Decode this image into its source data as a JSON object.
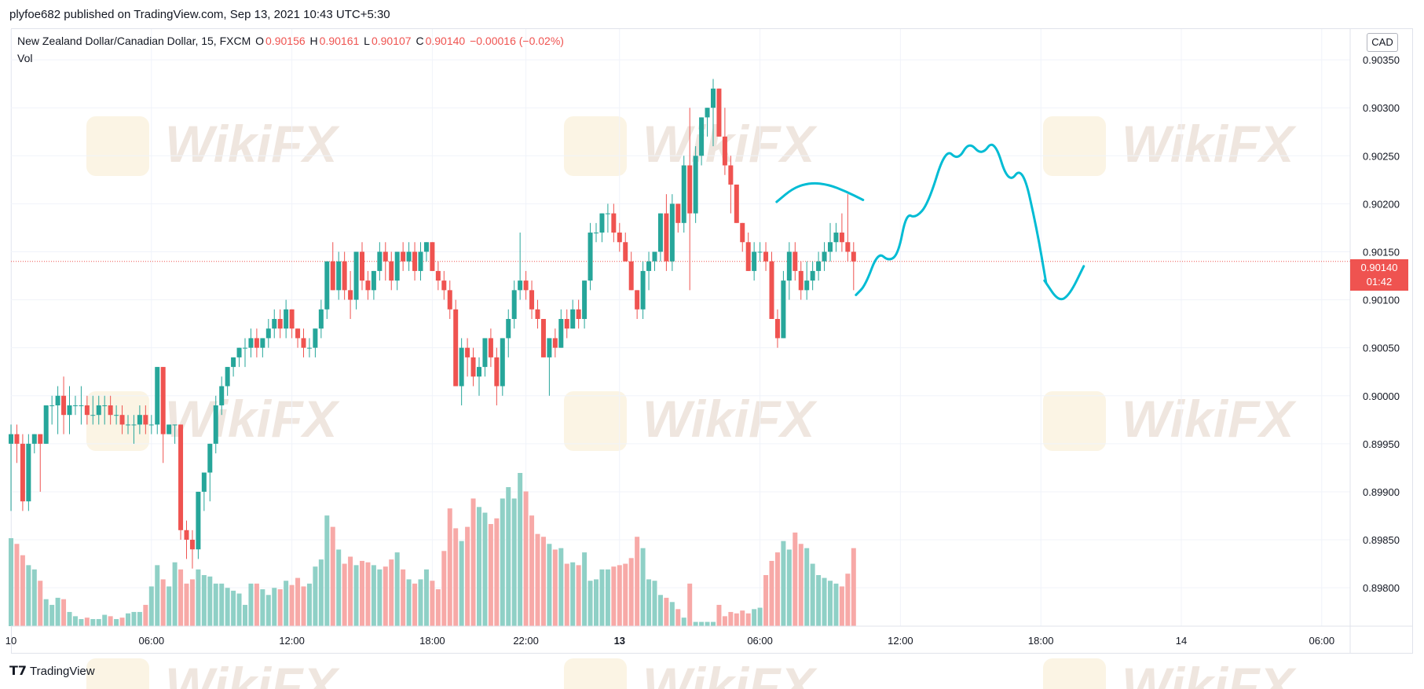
{
  "header": {
    "published": "plyfoe682 published on TradingView.com, Sep 13, 2021 10:43 UTC+5:30"
  },
  "legend": {
    "symbol": "New Zealand Dollar/Canadian Dollar, 15, FXCM",
    "o_label": "O",
    "o_value": "0.90156",
    "h_label": "H",
    "h_value": "0.90161",
    "l_label": "L",
    "l_value": "0.90107",
    "c_label": "C",
    "c_value": "0.90140",
    "change": "−0.00016 (−0.02%)",
    "volume_label": "Vol"
  },
  "currency": "CAD",
  "price_tag": {
    "price": "0.90140",
    "countdown": "01:42"
  },
  "watermark_text": "WikiFX",
  "footer": {
    "brand": "TradingView",
    "logo_icon": "tradingview-logo-icon"
  },
  "colors": {
    "up": "#26a69a",
    "down": "#ef5350",
    "up_volume": "#8fd0c6",
    "down_volume": "#f7a9a7",
    "drawing": "#00bcd4"
  },
  "chart_data": {
    "type": "candlestick",
    "interval_minutes": 15,
    "y_axis_ticks": [
      "0.90350",
      "0.90300",
      "0.90250",
      "0.90200",
      "0.90150",
      "0.90100",
      "0.90050",
      "0.90000",
      "0.89950",
      "0.89900",
      "0.89850",
      "0.89800"
    ],
    "ylim": [
      0.8976,
      0.90382
    ],
    "x_axis_ticks": [
      {
        "label": "10",
        "bold": false,
        "hours": 0
      },
      {
        "label": "06:00",
        "bold": false,
        "hours": 6
      },
      {
        "label": "12:00",
        "bold": false,
        "hours": 12
      },
      {
        "label": "18:00",
        "bold": false,
        "hours": 18
      },
      {
        "label": "22:00",
        "bold": false,
        "hours": 22
      },
      {
        "label": "13",
        "bold": true,
        "hours": 26
      },
      {
        "label": "06:00",
        "bold": false,
        "hours": 32
      },
      {
        "label": "12:00",
        "bold": false,
        "hours": 38
      },
      {
        "label": "18:00",
        "bold": false,
        "hours": 44
      },
      {
        "label": "14",
        "bold": false,
        "hours": 50
      },
      {
        "label": "06:00",
        "bold": false,
        "hours": 56
      }
    ],
    "last_price": 0.9014,
    "candles": [
      [
        0.8995,
        0.8997,
        0.8988,
        0.8996,
        62
      ],
      [
        0.8996,
        0.8997,
        0.8993,
        0.8995,
        58
      ],
      [
        0.8995,
        0.8996,
        0.8988,
        0.8989,
        50
      ],
      [
        0.8989,
        0.8996,
        0.8988,
        0.8995,
        43
      ],
      [
        0.8995,
        0.8996,
        0.8994,
        0.8996,
        40
      ],
      [
        0.8996,
        0.8996,
        0.899,
        0.8995,
        32
      ],
      [
        0.8995,
        0.8999,
        0.8995,
        0.8999,
        19
      ],
      [
        0.8999,
        0.9,
        0.8997,
        0.8999,
        15
      ],
      [
        0.8999,
        0.9001,
        0.8996,
        0.9,
        20
      ],
      [
        0.9,
        0.9002,
        0.8996,
        0.8998,
        19
      ],
      [
        0.8998,
        0.9001,
        0.8996,
        0.8999,
        10
      ],
      [
        0.8999,
        0.9,
        0.8998,
        0.8999,
        7
      ],
      [
        0.8999,
        0.9001,
        0.8997,
        0.8999,
        5
      ],
      [
        0.8999,
        0.9,
        0.8997,
        0.8998,
        6
      ],
      [
        0.8998,
        0.9,
        0.8997,
        0.8998,
        5
      ],
      [
        0.8998,
        0.9,
        0.8997,
        0.8999,
        5
      ],
      [
        0.8999,
        0.9,
        0.8997,
        0.8999,
        8
      ],
      [
        0.8999,
        0.9,
        0.8997,
        0.8998,
        7
      ],
      [
        0.8998,
        0.8999,
        0.8997,
        0.8998,
        5
      ],
      [
        0.8998,
        0.8999,
        0.8996,
        0.8997,
        6
      ],
      [
        0.8997,
        0.8998,
        0.8996,
        0.8997,
        9
      ],
      [
        0.8997,
        0.8998,
        0.8995,
        0.8997,
        10
      ],
      [
        0.8997,
        0.8999,
        0.8996,
        0.8998,
        10
      ],
      [
        0.8998,
        0.8999,
        0.8996,
        0.8997,
        15
      ],
      [
        0.8997,
        0.8998,
        0.8996,
        0.8997,
        28
      ],
      [
        0.8997,
        0.9003,
        0.8996,
        0.9003,
        43
      ],
      [
        0.9003,
        0.9003,
        0.8993,
        0.8996,
        33
      ],
      [
        0.8996,
        0.8997,
        0.8996,
        0.8997,
        28
      ],
      [
        0.8997,
        0.8997,
        0.8995,
        0.8997,
        45
      ],
      [
        0.8997,
        0.8997,
        0.8985,
        0.8986,
        40
      ],
      [
        0.8986,
        0.8987,
        0.8983,
        0.8985,
        30
      ],
      [
        0.8985,
        0.8986,
        0.8982,
        0.8984,
        33
      ],
      [
        0.8984,
        0.899,
        0.8983,
        0.899,
        40
      ],
      [
        0.899,
        0.8992,
        0.8988,
        0.8992,
        36
      ],
      [
        0.8992,
        0.8995,
        0.8989,
        0.8995,
        35
      ],
      [
        0.8995,
        0.9,
        0.8994,
        0.8999,
        30
      ],
      [
        0.8999,
        0.9002,
        0.8998,
        0.9001,
        30
      ],
      [
        0.9001,
        0.9003,
        0.9,
        0.9003,
        27
      ],
      [
        0.9003,
        0.9004,
        0.9002,
        0.9004,
        25
      ],
      [
        0.9004,
        0.9005,
        0.9003,
        0.9005,
        23
      ],
      [
        0.9005,
        0.9006,
        0.9003,
        0.9005,
        15
      ],
      [
        0.9005,
        0.9007,
        0.9004,
        0.9006,
        30
      ],
      [
        0.9006,
        0.9007,
        0.9004,
        0.9005,
        30
      ],
      [
        0.9005,
        0.9006,
        0.9004,
        0.9006,
        26
      ],
      [
        0.9006,
        0.9008,
        0.9005,
        0.9007,
        22
      ],
      [
        0.9007,
        0.9009,
        0.9006,
        0.9008,
        27
      ],
      [
        0.9008,
        0.9009,
        0.9006,
        0.9007,
        26
      ],
      [
        0.9007,
        0.901,
        0.9006,
        0.9009,
        32
      ],
      [
        0.9009,
        0.9009,
        0.9006,
        0.9007,
        29
      ],
      [
        0.9007,
        0.9007,
        0.9005,
        0.9006,
        34
      ],
      [
        0.9006,
        0.9007,
        0.9004,
        0.9005,
        28
      ],
      [
        0.9005,
        0.9006,
        0.9004,
        0.9005,
        30
      ],
      [
        0.9005,
        0.9007,
        0.9004,
        0.9007,
        42
      ],
      [
        0.9007,
        0.901,
        0.9006,
        0.9009,
        47
      ],
      [
        0.9009,
        0.9014,
        0.9008,
        0.9014,
        78
      ],
      [
        0.9014,
        0.9016,
        0.9011,
        0.9011,
        70
      ],
      [
        0.9011,
        0.9015,
        0.901,
        0.9014,
        54
      ],
      [
        0.9014,
        0.9015,
        0.901,
        0.9011,
        44
      ],
      [
        0.9011,
        0.9013,
        0.9008,
        0.901,
        49
      ],
      [
        0.901,
        0.9015,
        0.9009,
        0.9015,
        43
      ],
      [
        0.9015,
        0.9016,
        0.9011,
        0.9012,
        46
      ],
      [
        0.9012,
        0.9013,
        0.901,
        0.9011,
        45
      ],
      [
        0.9011,
        0.9013,
        0.901,
        0.9013,
        43
      ],
      [
        0.9013,
        0.9016,
        0.9012,
        0.9015,
        40
      ],
      [
        0.9015,
        0.9016,
        0.9012,
        0.9014,
        42
      ],
      [
        0.9014,
        0.9015,
        0.9011,
        0.9012,
        47
      ],
      [
        0.9012,
        0.9015,
        0.9011,
        0.9015,
        52
      ],
      [
        0.9015,
        0.9016,
        0.9013,
        0.9014,
        40
      ],
      [
        0.9014,
        0.9016,
        0.9013,
        0.9015,
        33
      ],
      [
        0.9015,
        0.9016,
        0.9012,
        0.9013,
        30
      ],
      [
        0.9013,
        0.9016,
        0.9012,
        0.9015,
        33
      ],
      [
        0.9015,
        0.9016,
        0.9014,
        0.9016,
        40
      ],
      [
        0.9016,
        0.9016,
        0.9013,
        0.9013,
        32
      ],
      [
        0.9013,
        0.9014,
        0.9011,
        0.9012,
        26
      ],
      [
        0.9012,
        0.9013,
        0.901,
        0.9011,
        53
      ],
      [
        0.9011,
        0.9012,
        0.9008,
        0.9009,
        83
      ],
      [
        0.9009,
        0.901,
        0.9001,
        0.9001,
        69
      ],
      [
        0.9001,
        0.9006,
        0.8999,
        0.9005,
        60
      ],
      [
        0.9005,
        0.9006,
        0.9002,
        0.9004,
        70
      ],
      [
        0.9004,
        0.9005,
        0.9001,
        0.9002,
        90
      ],
      [
        0.9002,
        0.9004,
        0.9,
        0.9003,
        84
      ],
      [
        0.9003,
        0.9006,
        0.9002,
        0.9006,
        80
      ],
      [
        0.9006,
        0.9007,
        0.9003,
        0.9004,
        72
      ],
      [
        0.9004,
        0.9005,
        0.8999,
        0.9001,
        76
      ],
      [
        0.9001,
        0.9006,
        0.9,
        0.9006,
        90
      ],
      [
        0.9006,
        0.9009,
        0.9004,
        0.9008,
        98
      ],
      [
        0.9008,
        0.9012,
        0.9007,
        0.9011,
        90
      ],
      [
        0.9011,
        0.9017,
        0.901,
        0.9012,
        108
      ],
      [
        0.9012,
        0.9013,
        0.901,
        0.9011,
        95
      ],
      [
        0.9011,
        0.9012,
        0.9008,
        0.9009,
        78
      ],
      [
        0.9009,
        0.901,
        0.9007,
        0.9008,
        65
      ],
      [
        0.9008,
        0.9008,
        0.9004,
        0.9004,
        63
      ],
      [
        0.9004,
        0.9006,
        0.9,
        0.9006,
        58
      ],
      [
        0.9006,
        0.9007,
        0.9004,
        0.9005,
        54
      ],
      [
        0.9005,
        0.9009,
        0.9005,
        0.9008,
        55
      ],
      [
        0.9008,
        0.9009,
        0.9006,
        0.9007,
        44
      ],
      [
        0.9007,
        0.901,
        0.9007,
        0.9009,
        45
      ],
      [
        0.9009,
        0.901,
        0.9007,
        0.9008,
        43
      ],
      [
        0.9008,
        0.9012,
        0.9007,
        0.9012,
        52
      ],
      [
        0.9012,
        0.9018,
        0.9011,
        0.9017,
        32
      ],
      [
        0.9017,
        0.9018,
        0.9016,
        0.9017,
        33
      ],
      [
        0.9017,
        0.9019,
        0.9016,
        0.9019,
        40
      ],
      [
        0.9019,
        0.902,
        0.9017,
        0.9019,
        40
      ],
      [
        0.9019,
        0.902,
        0.9016,
        0.9017,
        42
      ],
      [
        0.9017,
        0.9018,
        0.9015,
        0.9016,
        43
      ],
      [
        0.9016,
        0.9017,
        0.9014,
        0.9014,
        44
      ],
      [
        0.9014,
        0.9015,
        0.9011,
        0.9011,
        48
      ],
      [
        0.9011,
        0.9011,
        0.9008,
        0.9009,
        63
      ],
      [
        0.9009,
        0.9014,
        0.9008,
        0.9013,
        55
      ],
      [
        0.9013,
        0.9015,
        0.9011,
        0.9014,
        33
      ],
      [
        0.9014,
        0.9015,
        0.9013,
        0.9015,
        32
      ],
      [
        0.9015,
        0.9019,
        0.9014,
        0.9019,
        22
      ],
      [
        0.9019,
        0.9021,
        0.9013,
        0.9014,
        20
      ],
      [
        0.9014,
        0.9021,
        0.9013,
        0.902,
        17
      ],
      [
        0.902,
        0.902,
        0.9017,
        0.9018,
        12
      ],
      [
        0.9018,
        0.9025,
        0.9017,
        0.9024,
        6
      ],
      [
        0.9024,
        0.903,
        0.9011,
        0.9019,
        30
      ],
      [
        0.9019,
        0.9026,
        0.9018,
        0.9025,
        3
      ],
      [
        0.9025,
        0.9029,
        0.9024,
        0.9029,
        3
      ],
      [
        0.9029,
        0.903,
        0.9027,
        0.903,
        3
      ],
      [
        0.903,
        0.9033,
        0.9026,
        0.9032,
        3
      ],
      [
        0.9032,
        0.9032,
        0.9027,
        0.9027,
        15
      ],
      [
        0.9027,
        0.903,
        0.9023,
        0.9024,
        7
      ],
      [
        0.9024,
        0.9025,
        0.9019,
        0.9022,
        10
      ],
      [
        0.9022,
        0.9022,
        0.9018,
        0.9018,
        9
      ],
      [
        0.9018,
        0.9018,
        0.9015,
        0.9016,
        11
      ],
      [
        0.9016,
        0.9017,
        0.9013,
        0.9013,
        9
      ],
      [
        0.9013,
        0.9016,
        0.9012,
        0.9015,
        12
      ],
      [
        0.9015,
        0.9016,
        0.9014,
        0.9015,
        13
      ],
      [
        0.9015,
        0.9016,
        0.9013,
        0.9014,
        36
      ],
      [
        0.9014,
        0.9015,
        0.9008,
        0.9008,
        46
      ],
      [
        0.9008,
        0.9009,
        0.9005,
        0.9006,
        52
      ],
      [
        0.9006,
        0.9013,
        0.9006,
        0.9012,
        60
      ],
      [
        0.9012,
        0.9016,
        0.901,
        0.9015,
        54
      ],
      [
        0.9015,
        0.9016,
        0.9012,
        0.9013,
        66
      ],
      [
        0.9013,
        0.9014,
        0.901,
        0.9011,
        58
      ],
      [
        0.9011,
        0.9014,
        0.901,
        0.9012,
        55
      ],
      [
        0.9012,
        0.9014,
        0.9011,
        0.9013,
        44
      ],
      [
        0.9013,
        0.9015,
        0.9012,
        0.9014,
        36
      ],
      [
        0.9014,
        0.9016,
        0.9013,
        0.9015,
        34
      ],
      [
        0.9015,
        0.9018,
        0.9014,
        0.9016,
        32
      ],
      [
        0.9016,
        0.9018,
        0.9015,
        0.9017,
        30
      ],
      [
        0.9017,
        0.9019,
        0.9015,
        0.9016,
        28
      ],
      [
        0.9016,
        0.9021,
        0.9014,
        0.9015,
        37
      ],
      [
        0.9015,
        0.9016,
        0.9011,
        0.9014,
        55
      ]
    ],
    "drawings": [
      {
        "type": "freehand",
        "points": [
          [
            0.9012,
            0.90202
          ],
          [
            0.9015,
            0.90217
          ],
          [
            0.902,
            0.90222
          ],
          [
            0.9022,
            0.9022
          ],
          [
            0.9024,
            0.90213
          ],
          [
            0.9025,
            0.90204
          ]
        ]
      },
      {
        "type": "freehand",
        "points": [
          [
            0.0,
            0.90105
          ],
          [
            0.6,
            0.90115
          ],
          [
            1.4,
            0.9015
          ],
          [
            2.1,
            0.9014
          ],
          [
            2.7,
            0.90148
          ],
          [
            3.2,
            0.9019
          ],
          [
            3.8,
            0.90185
          ],
          [
            4.6,
            0.902
          ],
          [
            5.7,
            0.90258
          ],
          [
            6.5,
            0.90245
          ],
          [
            7.2,
            0.90265
          ],
          [
            8.0,
            0.9025
          ],
          [
            8.8,
            0.90268
          ],
          [
            9.7,
            0.9022
          ],
          [
            10.6,
            0.9024
          ],
          [
            11.5,
            0.90175
          ],
          [
            12.1,
            0.90118
          ]
        ]
      },
      {
        "type": "freehand",
        "points": [
          [
            12.0,
            0.9012
          ],
          [
            12.9,
            0.90098
          ],
          [
            13.6,
            0.90105
          ],
          [
            14.5,
            0.90135
          ]
        ]
      }
    ]
  }
}
